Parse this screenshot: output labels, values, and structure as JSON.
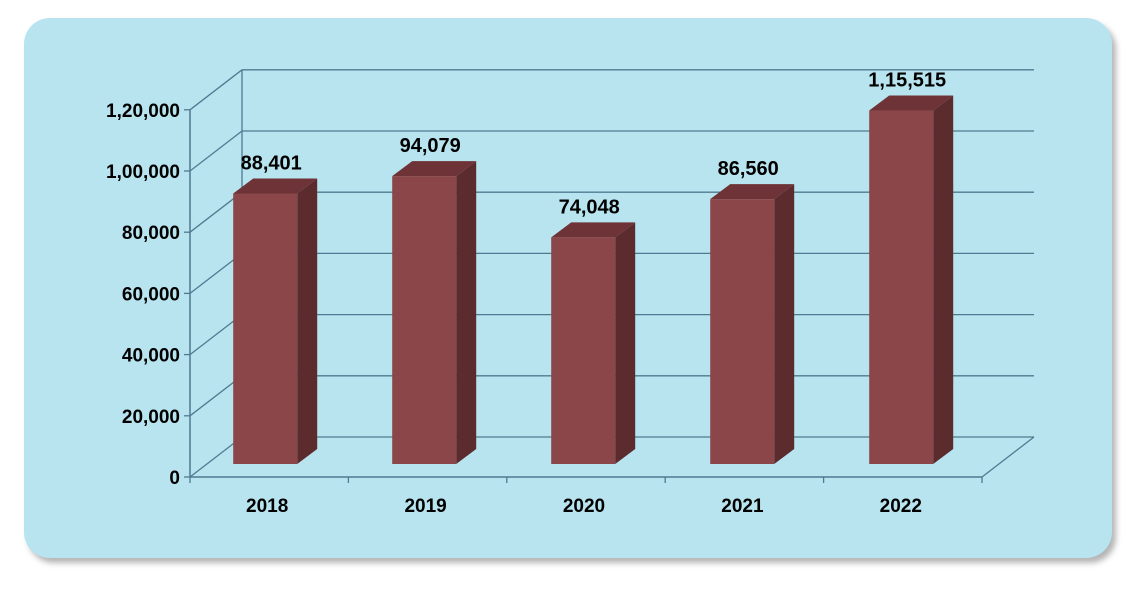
{
  "chart_data": {
    "type": "bar",
    "style": "3d-column",
    "categories": [
      "2018",
      "2019",
      "2020",
      "2021",
      "2022"
    ],
    "values": [
      88401,
      94079,
      74048,
      86560,
      115515
    ],
    "data_labels": [
      "88,401",
      "94,079",
      "74,048",
      "86,560",
      "1,15,515"
    ],
    "y_ticks": [
      0,
      20000,
      40000,
      60000,
      80000,
      100000,
      120000
    ],
    "y_tick_labels": [
      "0",
      "20,000",
      "40,000",
      "60,000",
      "80,000",
      "1,00,000",
      "1,20,000"
    ],
    "ylim": [
      0,
      120000
    ],
    "title": "",
    "xlabel": "",
    "ylabel": "",
    "grid": true,
    "legend": "none",
    "colors": {
      "panel_background": "#b8e4ef",
      "bar_front": "#8b4649",
      "bar_side": "#5b2b2e",
      "bar_top": "#6e3336",
      "grid": "#4f7a91"
    }
  }
}
